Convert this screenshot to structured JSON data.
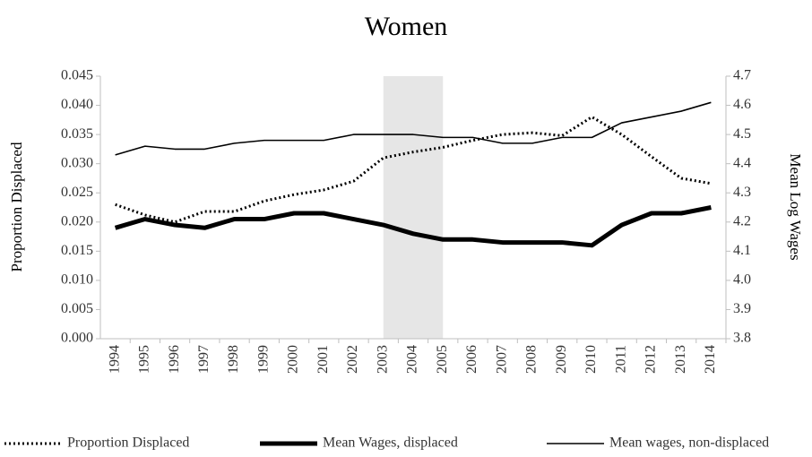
{
  "chart_data": {
    "type": "line",
    "title": "Women",
    "y_label": "Proportion Displaced",
    "y2_label": "Mean Log Wages",
    "categories": [
      "1994",
      "1995",
      "1996",
      "1997",
      "1998",
      "1999",
      "2000",
      "2001",
      "2002",
      "2003",
      "2004",
      "2005",
      "2006",
      "2007",
      "2008",
      "2009",
      "2010",
      "2011",
      "2012",
      "2013",
      "2014"
    ],
    "shaded_categories": [
      "2003",
      "2005"
    ],
    "shade_color": "#e6e6e6",
    "series": [
      {
        "name": "Proportion Displaced",
        "color": "#000000",
        "style": "dotted",
        "axis": "y",
        "values": [
          0.023,
          0.0212,
          0.02,
          0.0218,
          0.0218,
          0.0236,
          0.0247,
          0.0255,
          0.027,
          0.031,
          0.032,
          0.0328,
          0.034,
          0.035,
          0.0353,
          0.0348,
          0.038,
          0.035,
          0.0312,
          0.0275,
          0.0266
        ]
      },
      {
        "name": "Mean Wages, displaced",
        "color": "#000000",
        "style": "thick",
        "axis": "y2",
        "values": [
          4.18,
          4.21,
          4.19,
          4.18,
          4.21,
          4.21,
          4.23,
          4.23,
          4.21,
          4.19,
          4.16,
          4.14,
          4.14,
          4.13,
          4.13,
          4.13,
          4.12,
          4.19,
          4.23,
          4.23,
          4.25
        ]
      },
      {
        "name": "Mean wages, non-displaced",
        "color": "#000000",
        "style": "thin",
        "axis": "y2",
        "values": [
          4.43,
          4.46,
          4.45,
          4.45,
          4.47,
          4.48,
          4.48,
          4.48,
          4.5,
          4.5,
          4.5,
          4.49,
          4.49,
          4.47,
          4.47,
          4.49,
          4.49,
          4.54,
          4.56,
          4.58,
          4.61
        ]
      }
    ],
    "ylim": [
      0,
      0.045
    ],
    "yticks": [
      {
        "value": 0,
        "label": "0.000"
      },
      0.005,
      {
        "value": 0.01,
        "label": "0.010"
      },
      0.015,
      {
        "value": 0.02,
        "label": "0.020"
      },
      0.025,
      {
        "value": 0.03,
        "label": "0.030"
      },
      0.035,
      {
        "value": 0.04,
        "label": "0.040"
      },
      0.045
    ],
    "y2lim": [
      3.8,
      4.7
    ],
    "y2ticks": [
      3.8,
      3.9,
      {
        "value": 4.0,
        "label": "4.0"
      },
      4.1,
      4.2,
      4.3,
      4.4,
      4.5,
      4.6,
      4.7
    ],
    "grid": false,
    "legend": "bottom"
  }
}
